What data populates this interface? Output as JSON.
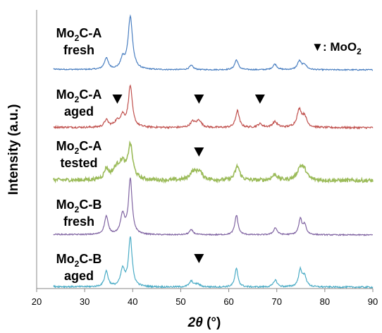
{
  "chart_data": {
    "type": "line",
    "xlabel": "2θ (°)",
    "ylabel": "Intensity (a.u.)",
    "xlim": [
      20,
      90
    ],
    "x_ticks": [
      "20",
      "30",
      "40",
      "50",
      "60",
      "70",
      "80",
      "90"
    ],
    "legend": {
      "marker": "▼",
      "text": ": MoO",
      "sub": "2",
      "placement": "top-right"
    },
    "series": [
      {
        "name": "Mo2C-A fresh",
        "label_line1": "Mo",
        "label_sub": "2",
        "label_line1_rest": "C-A",
        "label_line2": "fresh",
        "color": "#4a7fc1",
        "noise": 0.8,
        "peaks": [
          [
            34.5,
            16,
            0.5
          ],
          [
            37.9,
            14,
            0.5
          ],
          [
            39.5,
            75,
            0.55
          ],
          [
            52.2,
            6,
            0.5
          ],
          [
            61.6,
            14,
            0.45
          ],
          [
            69.6,
            8,
            0.5
          ],
          [
            74.7,
            12,
            0.5
          ],
          [
            75.8,
            7,
            0.5
          ]
        ],
        "markers": []
      },
      {
        "name": "Mo2C-A aged",
        "label_line1": "Mo",
        "label_sub": "2",
        "label_line1_rest": "C-A",
        "label_line2": "aged",
        "color": "#c0504d",
        "noise": 1.3,
        "peaks": [
          [
            34.5,
            10,
            0.5
          ],
          [
            36.8,
            8,
            0.8
          ],
          [
            37.9,
            14,
            0.5
          ],
          [
            39.5,
            58,
            0.5
          ],
          [
            52.5,
            8,
            0.6
          ],
          [
            53.8,
            10,
            0.6
          ],
          [
            61.8,
            24,
            0.45
          ],
          [
            66.5,
            5,
            0.6
          ],
          [
            69.6,
            8,
            0.6
          ],
          [
            74.7,
            25,
            0.6
          ],
          [
            75.8,
            14,
            0.5
          ]
        ],
        "markers": [
          36.8,
          53.8,
          66.5
        ]
      },
      {
        "name": "Mo2C-A tested",
        "label_line1": "Mo",
        "label_sub": "2",
        "label_line1_rest": "C-A",
        "label_line2": "tested",
        "color": "#9bbb59",
        "noise": 2.6,
        "peaks": [
          [
            34.5,
            14,
            0.5
          ],
          [
            36.8,
            18,
            1.2
          ],
          [
            37.9,
            16,
            0.6
          ],
          [
            39.5,
            48,
            0.6
          ],
          [
            52.5,
            10,
            0.8
          ],
          [
            53.8,
            12,
            0.9
          ],
          [
            61.8,
            20,
            0.6
          ],
          [
            69.6,
            8,
            0.7
          ],
          [
            74.9,
            18,
            0.8
          ],
          [
            75.8,
            10,
            0.6
          ]
        ],
        "markers": [
          53.8
        ]
      },
      {
        "name": "Mo2C-B fresh",
        "label_line1": "Mo",
        "label_sub": "2",
        "label_line1_rest": "C-B",
        "label_line2": "fresh",
        "color": "#8064a2",
        "noise": 0.8,
        "peaks": [
          [
            34.5,
            26,
            0.45
          ],
          [
            37.9,
            28,
            0.5
          ],
          [
            39.5,
            78,
            0.45
          ],
          [
            52.2,
            7,
            0.5
          ],
          [
            61.6,
            28,
            0.4
          ],
          [
            69.7,
            10,
            0.45
          ],
          [
            74.9,
            22,
            0.4
          ],
          [
            75.8,
            14,
            0.4
          ]
        ],
        "markers": []
      },
      {
        "name": "Mo2C-B aged",
        "label_line1": "Mo",
        "label_sub": "2",
        "label_line1_rest": "C-B",
        "label_line2": "aged",
        "color": "#4bacc6",
        "noise": 1.1,
        "peaks": [
          [
            34.5,
            22,
            0.45
          ],
          [
            37.9,
            24,
            0.5
          ],
          [
            39.5,
            70,
            0.45
          ],
          [
            52.2,
            8,
            0.5
          ],
          [
            53.5,
            4,
            0.6
          ],
          [
            61.6,
            26,
            0.4
          ],
          [
            69.7,
            10,
            0.45
          ],
          [
            74.9,
            24,
            0.45
          ],
          [
            75.8,
            14,
            0.45
          ]
        ],
        "markers": [
          53.8
        ]
      }
    ]
  }
}
